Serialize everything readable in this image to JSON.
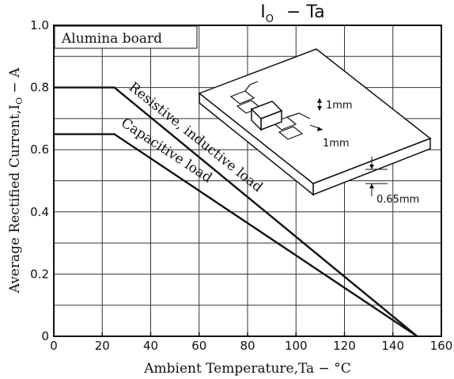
{
  "chart_data": {
    "type": "line",
    "title": "I₀ − Ta",
    "title_main": "I",
    "title_sub": "O",
    "title_rest": "−  Ta",
    "xlabel": "Ambient Temperature,Ta − °C",
    "ylabel": "Average Rectified Current,I",
    "ylabel_sub": "O",
    "ylabel_rest": " − A",
    "xlim": [
      0,
      160
    ],
    "ylim": [
      0,
      1.0
    ],
    "x_ticks": [
      "0",
      "20",
      "40",
      "60",
      "80",
      "100",
      "120",
      "140",
      "160"
    ],
    "y_ticks": [
      "0",
      "0.2",
      "0.4",
      "0.6",
      "0.8",
      "1.0"
    ],
    "grid": true,
    "series": [
      {
        "name": "Resistive, inductive load",
        "x": [
          0,
          25,
          150
        ],
        "y": [
          0.8,
          0.8,
          0
        ]
      },
      {
        "name": "Capacitive load",
        "x": [
          0,
          25,
          150
        ],
        "y": [
          0.65,
          0.65,
          0
        ]
      }
    ],
    "annotations": {
      "board_label": "Alumina board",
      "dim_pad_1": "1mm",
      "dim_pad_2": "1mm",
      "dim_thickness": "0.65mm"
    }
  }
}
